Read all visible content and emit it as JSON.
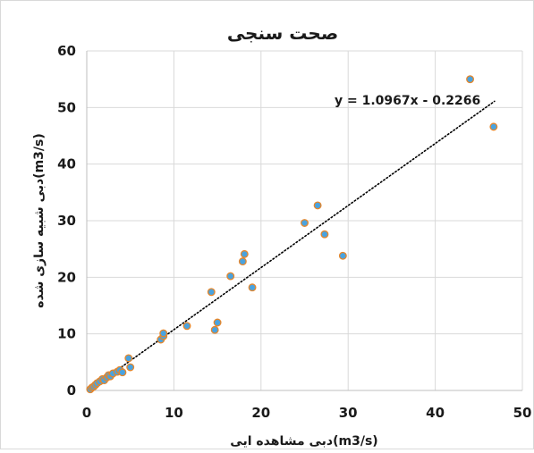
{
  "chart_data": {
    "type": "scatter",
    "title": "صحت سنجی",
    "xlabel": "دبی مشاهده ایی(m3/s)",
    "ylabel": "دبی شبیه سازی شده(m3/s)",
    "xlim": [
      0,
      50
    ],
    "ylim": [
      0,
      60
    ],
    "xticks": [
      0,
      10,
      20,
      30,
      40,
      50
    ],
    "yticks": [
      0,
      10,
      20,
      30,
      40,
      50,
      60
    ],
    "grid": true,
    "legend": "none",
    "marker_fill": "#4aa3df",
    "marker_edge": "#e6862a",
    "trendline": {
      "type": "linear",
      "slope": 1.0967,
      "intercept": -0.2266,
      "equation": "y = 1.0967x - 0.2266",
      "style": "dotted",
      "color": "#000000"
    },
    "series": [
      {
        "points": [
          [
            0.4,
            0.2
          ],
          [
            0.6,
            0.5
          ],
          [
            0.8,
            0.7
          ],
          [
            1.0,
            1.0
          ],
          [
            1.2,
            1.3
          ],
          [
            1.5,
            1.6
          ],
          [
            1.8,
            2.0
          ],
          [
            2.0,
            1.8
          ],
          [
            2.3,
            2.3
          ],
          [
            2.5,
            2.7
          ],
          [
            2.7,
            2.5
          ],
          [
            3.0,
            3.0
          ],
          [
            3.5,
            3.3
          ],
          [
            3.8,
            3.6
          ],
          [
            4.1,
            3.2
          ],
          [
            4.8,
            5.7
          ],
          [
            5.0,
            4.1
          ],
          [
            8.5,
            9.0
          ],
          [
            8.8,
            9.6
          ],
          [
            8.8,
            10.1
          ],
          [
            11.5,
            11.4
          ],
          [
            14.3,
            17.4
          ],
          [
            14.7,
            10.7
          ],
          [
            15.0,
            12.0
          ],
          [
            16.5,
            20.2
          ],
          [
            17.9,
            22.8
          ],
          [
            18.1,
            24.1
          ],
          [
            19.0,
            18.2
          ],
          [
            25.0,
            29.6
          ],
          [
            26.5,
            32.7
          ],
          [
            27.3,
            27.6
          ],
          [
            29.4,
            23.8
          ],
          [
            44.0,
            55.0
          ],
          [
            46.7,
            46.6
          ]
        ]
      }
    ]
  }
}
